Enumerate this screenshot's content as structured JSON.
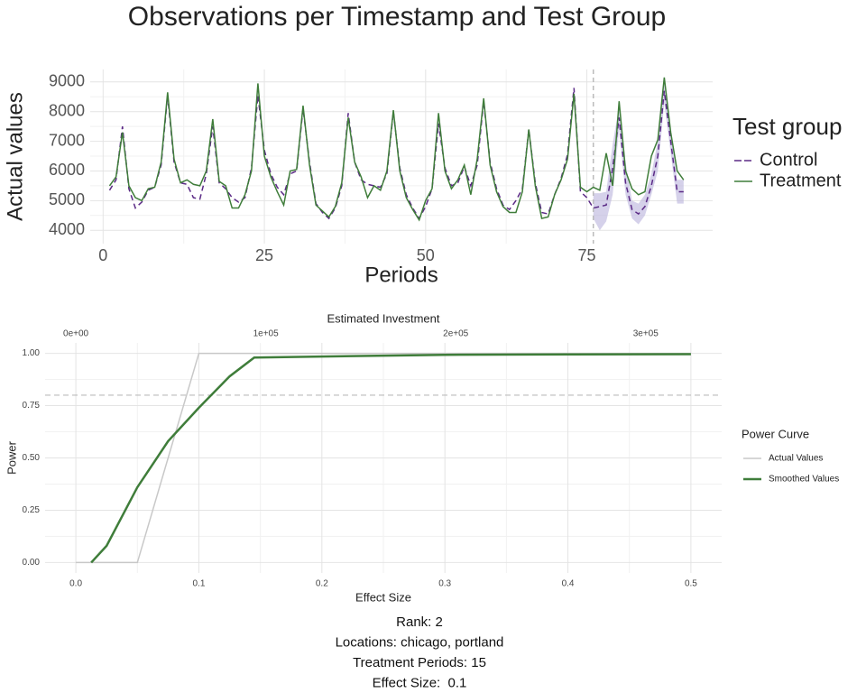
{
  "chart_data": [
    {
      "type": "line",
      "title": "Observations per Timestamp and Test Group",
      "xlabel": "Periods",
      "ylabel": "Actual values",
      "legend_title": "Test group",
      "legend": "right",
      "grid": true,
      "x": [
        1,
        2,
        3,
        4,
        5,
        6,
        7,
        8,
        9,
        10,
        11,
        12,
        13,
        14,
        15,
        16,
        17,
        18,
        19,
        20,
        21,
        22,
        23,
        24,
        25,
        26,
        27,
        28,
        29,
        30,
        31,
        32,
        33,
        34,
        35,
        36,
        37,
        38,
        39,
        40,
        41,
        42,
        43,
        44,
        45,
        46,
        47,
        48,
        49,
        50,
        51,
        52,
        53,
        54,
        55,
        56,
        57,
        58,
        59,
        60,
        61,
        62,
        63,
        64,
        65,
        66,
        67,
        68,
        69,
        70,
        71,
        72,
        73,
        74,
        75,
        76,
        77,
        78,
        79,
        80,
        81,
        82,
        83,
        84,
        85,
        86,
        87,
        88,
        89,
        90
      ],
      "series": [
        {
          "name": "Control",
          "color": "#5b2a86",
          "dash": true,
          "values": [
            5350,
            5700,
            7500,
            5400,
            4750,
            4950,
            5350,
            5450,
            6200,
            8550,
            6300,
            5600,
            5550,
            5100,
            5050,
            5900,
            7500,
            5600,
            5400,
            5100,
            4950,
            5100,
            6100,
            8550,
            6700,
            5900,
            5450,
            5200,
            5900,
            6000,
            8100,
            6300,
            4900,
            4600,
            4400,
            4750,
            5500,
            7950,
            6300,
            5700,
            5550,
            5500,
            5450,
            5900,
            8000,
            6100,
            5200,
            4750,
            4400,
            4800,
            5400,
            7600,
            6100,
            5500,
            5600,
            6150,
            5500,
            6200,
            8350,
            6300,
            5400,
            4850,
            4700,
            5000,
            5400,
            7400,
            5600,
            4600,
            4550,
            5200,
            5750,
            6550,
            8800,
            5300,
            5100,
            4750,
            4800,
            4850,
            6100,
            7800,
            5600,
            4700,
            4550,
            4800,
            5500,
            6500,
            8700,
            7000,
            5300,
            5300
          ]
        },
        {
          "name": "Treatment",
          "color": "#3f7d3a",
          "dash": false,
          "values": [
            5500,
            5800,
            7300,
            5500,
            5100,
            5000,
            5400,
            5450,
            6300,
            8650,
            6400,
            5600,
            5700,
            5550,
            5500,
            6000,
            7750,
            5650,
            5500,
            4750,
            4750,
            5200,
            6000,
            8950,
            6500,
            5800,
            5300,
            4850,
            6000,
            6050,
            8200,
            6200,
            4850,
            4650,
            4450,
            4800,
            5600,
            7800,
            6300,
            5800,
            5100,
            5500,
            5350,
            6000,
            8050,
            6000,
            5100,
            4700,
            4350,
            5000,
            5400,
            7950,
            6000,
            5400,
            5700,
            6200,
            5200,
            6400,
            8450,
            6200,
            5300,
            4800,
            4600,
            4600,
            5300,
            7400,
            5500,
            4400,
            4450,
            5200,
            5700,
            6400,
            8600,
            5450,
            5300,
            5450,
            5350,
            6600,
            5500,
            8350,
            6000,
            5400,
            5200,
            5300,
            6500,
            7050,
            9150,
            7300,
            6000,
            5700
          ]
        }
      ],
      "band": {
        "color": "#b9b3dc",
        "x": [
          76,
          77,
          78,
          79,
          80,
          81,
          82,
          83,
          84,
          85,
          86,
          87,
          88,
          89,
          90
        ],
        "lower": [
          4400,
          4000,
          4300,
          5200,
          7400,
          5200,
          4400,
          4200,
          4500,
          5200,
          6000,
          8300,
          6600,
          4900,
          4900
        ],
        "upper": [
          5250,
          5250,
          5300,
          6900,
          8200,
          6300,
          5000,
          4900,
          5200,
          5900,
          7000,
          9000,
          7400,
          5700,
          5700
        ]
      },
      "vline": 76,
      "xlim": [
        -2,
        94.5
      ],
      "xticks": [
        0,
        25,
        50,
        75
      ],
      "ylim": [
        3550,
        9420
      ],
      "yticks": [
        4000,
        5000,
        6000,
        7000,
        8000,
        9000
      ]
    },
    {
      "type": "line",
      "xlabel": "Effect Size",
      "ylabel": "Power",
      "x2label": "Estimated Investment",
      "legend_title": "Power Curve",
      "legend": "right",
      "grid": true,
      "series": [
        {
          "name": "Actual Values",
          "color": "#c8c8c8",
          "width": 1.5,
          "x": [
            0,
            0.05,
            0.1,
            0.15,
            0.2,
            0.25,
            0.3,
            0.35,
            0.4,
            0.45,
            0.5
          ],
          "values": [
            0,
            0,
            1,
            1,
            1,
            1,
            1,
            1,
            1,
            1,
            1
          ]
        },
        {
          "name": "Smoothed Values",
          "color": "#3f7d3a",
          "width": 2.5,
          "x": [
            0.0125,
            0.025,
            0.05,
            0.075,
            0.1,
            0.125,
            0.145,
            0.2,
            0.3,
            0.4,
            0.5
          ],
          "values": [
            0,
            0.08,
            0.36,
            0.58,
            0.74,
            0.89,
            0.98,
            0.985,
            0.993,
            0.995,
            0.996
          ]
        }
      ],
      "hline": 0.8,
      "xlim": [
        -0.025,
        0.525
      ],
      "xticks": [
        {
          "value": 0,
          "label": "0.0"
        },
        0.1,
        0.2,
        0.3,
        0.4,
        0.5
      ],
      "x2lim": [
        -16190,
        340000
      ],
      "x2ticks": [
        {
          "value": 0,
          "label": "0e+00"
        },
        {
          "value": 100000,
          "label": "1e+05"
        },
        {
          "value": 200000,
          "label": "2e+05"
        },
        {
          "value": 300000,
          "label": "3e+05"
        }
      ],
      "ylim": [
        -0.05,
        1.05
      ],
      "yticks": [
        {
          "value": 0,
          "label": "0.00"
        },
        {
          "value": 0.25,
          "label": "0.25"
        },
        {
          "value": 0.5,
          "label": "0.50"
        },
        {
          "value": 0.75,
          "label": "0.75"
        },
        {
          "value": 1,
          "label": "1.00"
        }
      ],
      "caption": [
        "Rank: 2",
        "Locations: chicago, portland",
        "Treatment Periods: 15",
        "Effect Size:  0.1"
      ]
    }
  ]
}
